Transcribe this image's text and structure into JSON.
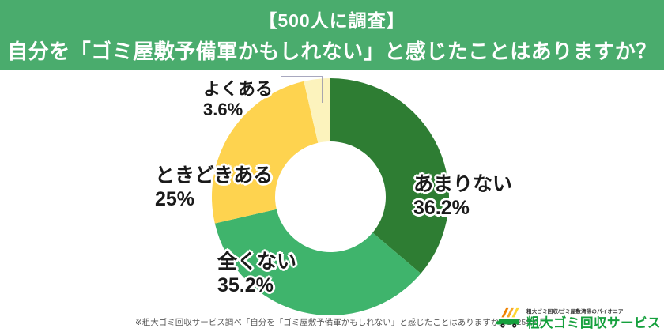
{
  "header": {
    "line1": "【500人に調査】",
    "line2": "自分を「ゴミ屋敷予備軍かもしれない」と感じたことはありますか？",
    "bg_color": "#4aac6d"
  },
  "chart_data": {
    "type": "pie",
    "donut": true,
    "start_angle_deg": 0,
    "direction": "clockwise",
    "title": "自分を「ゴミ屋敷予備軍かもしれない」と感じたことはありますか？（500人に調査）",
    "slices": [
      {
        "label": "あまりない",
        "value": 36.2,
        "display": "36.2%",
        "color": "#2e7d33"
      },
      {
        "label": "全くない",
        "value": 35.2,
        "display": "35.2%",
        "color": "#3fb46c"
      },
      {
        "label": "ときどきある",
        "value": 25,
        "display": "25%",
        "color": "#fed34f"
      },
      {
        "label": "よくある",
        "value": 3.6,
        "display": "3.6%",
        "color": "#fcf3bd"
      }
    ],
    "legend_position": "none",
    "leader_line_color": "#8b8baa"
  },
  "footer": {
    "note": "※粗大ゴミ回収サービス調べ「自分を「ゴミ屋敷予備軍かもしれない」と感じたことはありますか」2025年9月"
  },
  "logo": {
    "tagline": "粗大ゴミ回収/ゴミ屋敷清掃のパイオニア",
    "name": "粗大ゴミ回収サービス",
    "name_color": "#15a03d"
  }
}
